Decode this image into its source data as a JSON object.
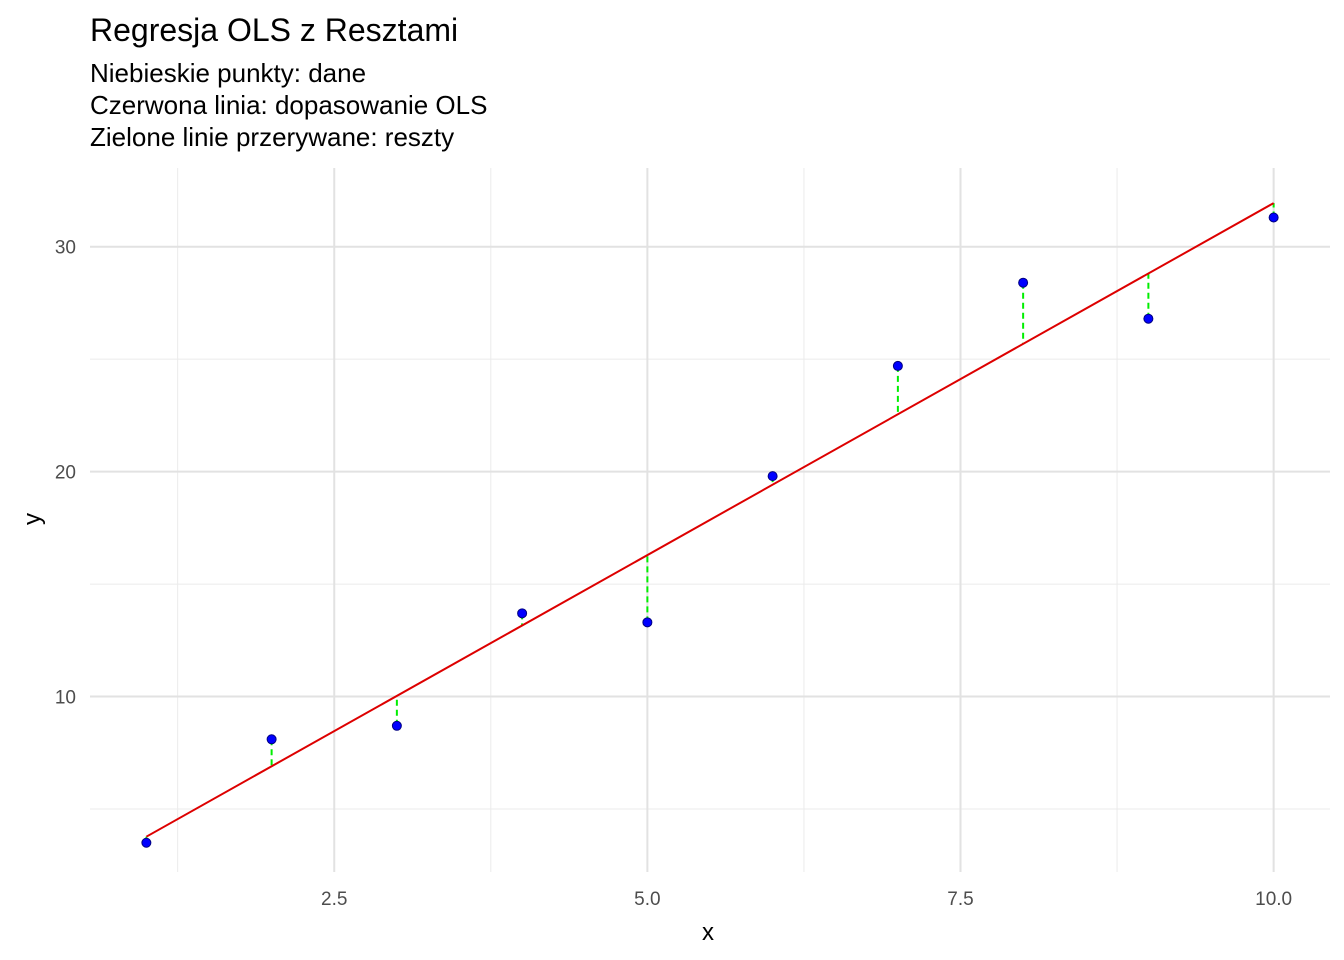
{
  "chart_data": {
    "type": "scatter",
    "title": "Regresja OLS z Resztami",
    "subtitle": [
      "Niebieskie punkty: dane",
      "Czerwona linia: dopasowanie OLS",
      "Zielone linie przerywane: reszty"
    ],
    "xlabel": "x",
    "ylabel": "y",
    "xlim": [
      0.55,
      10.45
    ],
    "ylim": [
      2.2,
      33.5
    ],
    "x_ticks": [
      2.5,
      5.0,
      7.5,
      10.0
    ],
    "x_tick_labels": [
      "2.5",
      "5.0",
      "7.5",
      "10.0"
    ],
    "y_ticks": [
      10,
      20,
      30
    ],
    "y_tick_labels": [
      "10",
      "20",
      "30"
    ],
    "x_minor_ticks": [
      1.25,
      3.75,
      6.25,
      8.75
    ],
    "y_minor_ticks": [
      5,
      15,
      25
    ],
    "grid": true,
    "series": [
      {
        "kind": "points",
        "color": "#0000ff",
        "x": [
          1,
          2,
          3,
          4,
          5,
          6,
          7,
          8,
          9,
          10
        ],
        "y": [
          3.5,
          8.1,
          8.7,
          13.7,
          13.3,
          19.8,
          24.7,
          28.4,
          26.8,
          31.3
        ]
      },
      {
        "kind": "fit-line",
        "color": "#dd0000",
        "intercept": 0.64,
        "slope": 3.13
      },
      {
        "kind": "residuals",
        "color": "#00ee00",
        "style": "dashed"
      }
    ]
  }
}
